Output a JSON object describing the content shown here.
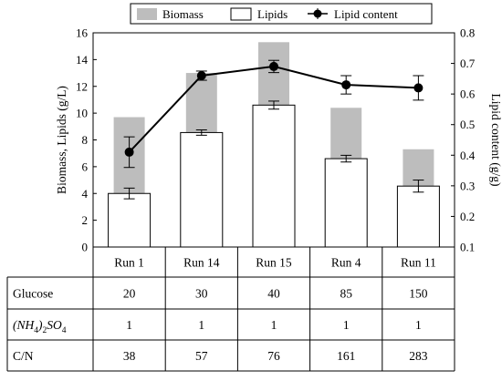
{
  "chart_data": {
    "type": "bar",
    "categories": [
      "Run 1",
      "Run 14",
      "Run 15",
      "Run 4",
      "Run 11"
    ],
    "series": [
      {
        "name": "Biomass",
        "kind": "bar",
        "axis": "left",
        "color": "#bdbdbd",
        "values": [
          9.7,
          13.0,
          15.3,
          10.4,
          7.3
        ]
      },
      {
        "name": "Lipids",
        "kind": "bar",
        "axis": "left",
        "color": "#ffffff",
        "values": [
          4.0,
          8.55,
          10.6,
          6.6,
          4.55
        ],
        "errors": [
          0.4,
          0.2,
          0.3,
          0.25,
          0.45
        ]
      },
      {
        "name": "Lipid content",
        "kind": "line",
        "axis": "right",
        "color": "#000000",
        "values": [
          0.41,
          0.66,
          0.69,
          0.63,
          0.62
        ],
        "errors": [
          0.05,
          0.015,
          0.02,
          0.03,
          0.04
        ]
      }
    ],
    "ylabel": "Biomass, Lipids (g/L)",
    "y2label": "Lipid content (g/g)",
    "ylim": [
      0,
      16
    ],
    "y2lim": [
      0.1,
      0.8
    ],
    "yticks": [
      "0",
      "2",
      "4",
      "6",
      "8",
      "10",
      "12",
      "14",
      "16"
    ],
    "y2ticks": [
      "0.1",
      "0.2",
      "0.3",
      "0.4",
      "0.5",
      "0.6",
      "0.7",
      "0.8"
    ],
    "legend_position": "top",
    "grid": false
  },
  "table": {
    "rows": [
      {
        "label": "Glucose",
        "values": [
          "20",
          "30",
          "40",
          "85",
          "150"
        ]
      },
      {
        "label_parts": {
          "base": "(NH",
          "sub1": "4",
          "mid": ")",
          "sub2": "2",
          "tail": "SO",
          "sub3": "4"
        },
        "values": [
          "1",
          "1",
          "1",
          "1",
          "1"
        ]
      },
      {
        "label": "C/N",
        "values": [
          "38",
          "57",
          "76",
          "161",
          "283"
        ]
      }
    ]
  }
}
